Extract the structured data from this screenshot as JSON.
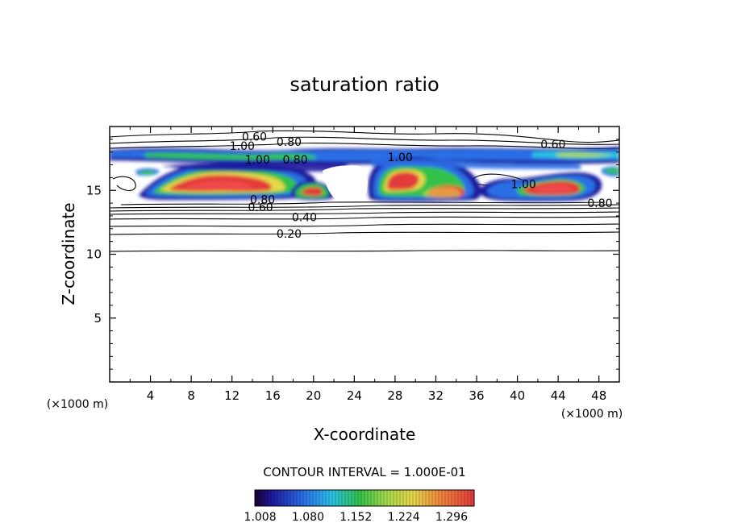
{
  "chart_data": {
    "type": "contour",
    "title": "saturation ratio",
    "xlabel": "X-coordinate",
    "ylabel": "Z-coordinate",
    "x_unit": "(×1000 m)",
    "y_unit": "(×1000 m)",
    "xlim": [
      0,
      50
    ],
    "ylim": [
      0,
      20
    ],
    "x_ticks": [
      "4",
      "8",
      "12",
      "16",
      "20",
      "24",
      "28",
      "32",
      "36",
      "40",
      "44",
      "48"
    ],
    "y_ticks": [
      "5",
      "10",
      "15"
    ],
    "contour_interval_label": "CONTOUR INTERVAL = 1.000E-01",
    "colorbar": {
      "ticks": [
        "1.008",
        "1.080",
        "1.152",
        "1.224",
        "1.296"
      ],
      "range": [
        1.0,
        1.33
      ]
    },
    "contour_labels": [
      {
        "text": "0.60",
        "x": 14.2,
        "z": 19.2
      },
      {
        "text": "0.80",
        "x": 17.6,
        "z": 18.8
      },
      {
        "text": "1.00",
        "x": 13.0,
        "z": 18.5
      },
      {
        "text": "1.00",
        "x": 14.5,
        "z": 17.4
      },
      {
        "text": "0.80",
        "x": 18.2,
        "z": 17.4
      },
      {
        "text": "1.00",
        "x": 28.5,
        "z": 17.6
      },
      {
        "text": "0.60",
        "x": 43.5,
        "z": 18.6
      },
      {
        "text": "1.00",
        "x": 40.6,
        "z": 15.5
      },
      {
        "text": "0.80",
        "x": 15.0,
        "z": 14.3
      },
      {
        "text": "0.60",
        "x": 14.8,
        "z": 13.7
      },
      {
        "text": "0.40",
        "x": 19.1,
        "z": 12.9
      },
      {
        "text": "0.20",
        "x": 17.6,
        "z": 11.6
      },
      {
        "text": "0.80",
        "x": 48.1,
        "z": 14.0
      }
    ],
    "supersaturated_regions": [
      {
        "x": [
          2,
          18
        ],
        "z": [
          14.3,
          17.2
        ],
        "max": 1.3
      },
      {
        "x": [
          18,
          22
        ],
        "z": [
          14.3,
          16.0
        ],
        "max": 1.3
      },
      {
        "x": [
          25,
          38
        ],
        "z": [
          14.3,
          17.4
        ],
        "max": 1.3
      },
      {
        "x": [
          38,
          48
        ],
        "z": [
          14.0,
          16.5
        ],
        "max": 1.3
      },
      {
        "x": [
          0,
          50
        ],
        "z": [
          17.4,
          18.7
        ],
        "max": 1.1
      }
    ]
  }
}
